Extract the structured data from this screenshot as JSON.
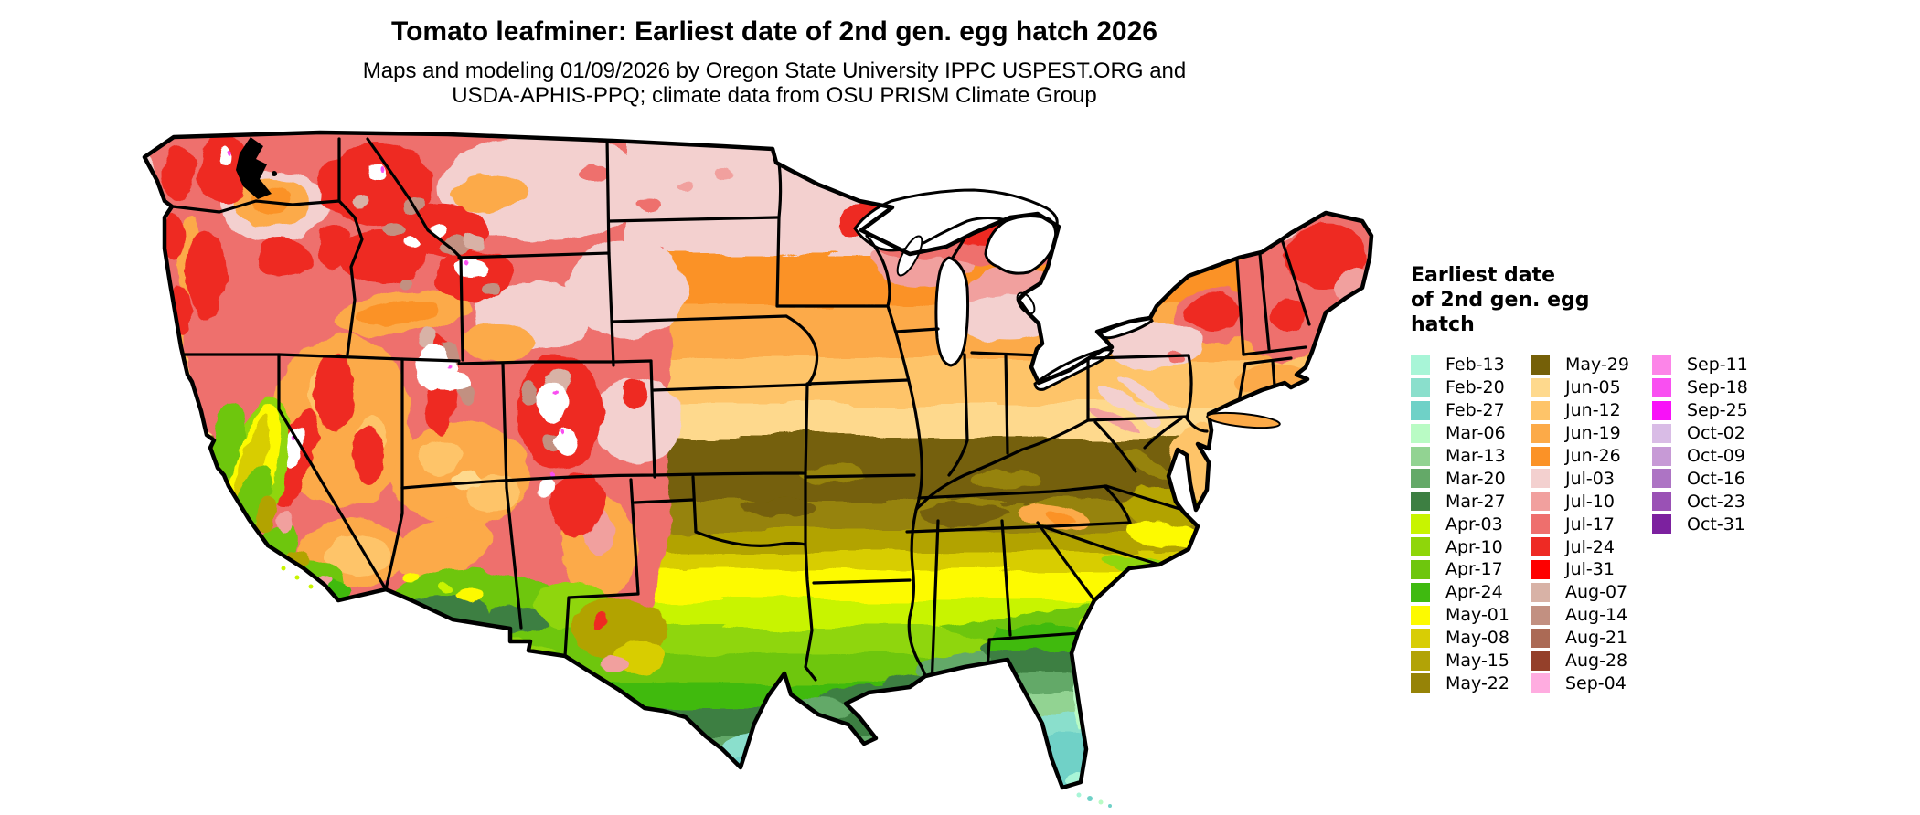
{
  "page": {
    "title": "Tomato leafminer: Earliest date of 2nd gen. egg hatch 2026",
    "subtitle_line1": "Maps and modeling 01/09/2026 by Oregon State University IPPC USPEST.ORG and",
    "subtitle_line2": "USDA-APHIS-PPQ; climate data from OSU PRISM Climate Group"
  },
  "legend": {
    "title_lines": [
      "Earliest date",
      "of 2nd gen. egg",
      "hatch"
    ],
    "columns": [
      [
        {
          "label": "Feb-13",
          "color": "#a8f5d7"
        },
        {
          "label": "Feb-20",
          "color": "#8adfcc"
        },
        {
          "label": "Feb-27",
          "color": "#6fd1c7"
        },
        {
          "label": "Mar-06",
          "color": "#b9fbc4"
        },
        {
          "label": "Mar-13",
          "color": "#92d392"
        },
        {
          "label": "Mar-20",
          "color": "#64a968"
        },
        {
          "label": "Mar-27",
          "color": "#3d7f42"
        },
        {
          "label": "Apr-03",
          "color": "#c8f400"
        },
        {
          "label": "Apr-10",
          "color": "#8fd60a"
        },
        {
          "label": "Apr-17",
          "color": "#6ec60d"
        },
        {
          "label": "Apr-24",
          "color": "#3fba10"
        },
        {
          "label": "May-01",
          "color": "#fdfa00"
        },
        {
          "label": "May-08",
          "color": "#d8cd05"
        },
        {
          "label": "May-15",
          "color": "#b2a306"
        },
        {
          "label": "May-22",
          "color": "#968307"
        }
      ],
      [
        {
          "label": "May-29",
          "color": "#756008"
        },
        {
          "label": "Jun-05",
          "color": "#fed98d"
        },
        {
          "label": "Jun-12",
          "color": "#fec469"
        },
        {
          "label": "Jun-19",
          "color": "#fcaa48"
        },
        {
          "label": "Jun-26",
          "color": "#fb9227"
        },
        {
          "label": "Jul-03",
          "color": "#f3d0cf"
        },
        {
          "label": "Jul-10",
          "color": "#f1a09e"
        },
        {
          "label": "Jul-17",
          "color": "#ee6f6d"
        },
        {
          "label": "Jul-24",
          "color": "#ee2a24"
        },
        {
          "label": "Jul-31",
          "color": "#fe0000"
        },
        {
          "label": "Aug-07",
          "color": "#d8b2a6"
        },
        {
          "label": "Aug-14",
          "color": "#c29081"
        },
        {
          "label": "Aug-21",
          "color": "#ab6a55"
        },
        {
          "label": "Aug-28",
          "color": "#94402a"
        },
        {
          "label": "Sep-04",
          "color": "#fface0"
        }
      ],
      [
        {
          "label": "Sep-11",
          "color": "#fc85e8"
        },
        {
          "label": "Sep-18",
          "color": "#f94ff1"
        },
        {
          "label": "Sep-25",
          "color": "#f811f8"
        },
        {
          "label": "Oct-02",
          "color": "#d9bce6"
        },
        {
          "label": "Oct-09",
          "color": "#c79ad6"
        },
        {
          "label": "Oct-16",
          "color": "#ad74c4"
        },
        {
          "label": "Oct-23",
          "color": "#9a51b5"
        },
        {
          "label": "Oct-31",
          "color": "#7c219f"
        }
      ]
    ]
  },
  "map": {
    "region": "Contiguous United States",
    "outline_color": "#000000",
    "water_color": "#ffffff",
    "background_color": "#ffffff"
  }
}
